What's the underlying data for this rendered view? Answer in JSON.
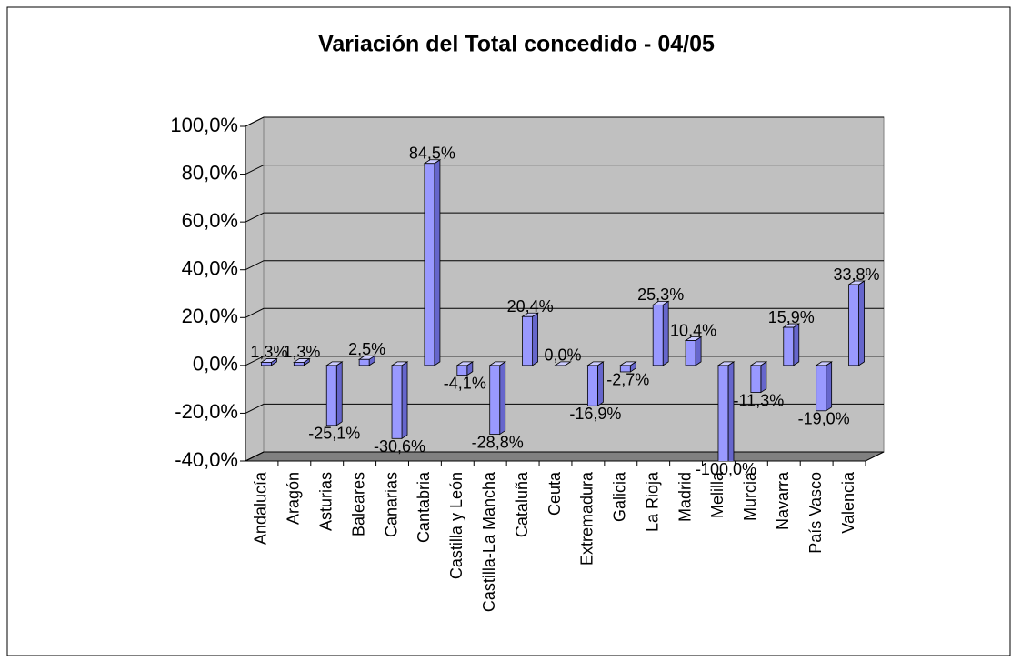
{
  "chart_data": {
    "type": "bar3d",
    "title": "Variación del Total concedido - 04/05",
    "categories": [
      "Andalucía",
      "Aragón",
      "Asturias",
      "Baleares",
      "Canarias",
      "Cantabria",
      "Castilla y León",
      "Castilla-La Mancha",
      "Cataluña",
      "Ceuta",
      "Extremadura",
      "Galicia",
      "La Rioja",
      "Madrid",
      "Melilla",
      "Murcia",
      "Navarra",
      "País Vasco",
      "Valencia"
    ],
    "values": [
      1.3,
      1.3,
      -25.1,
      2.5,
      -30.6,
      84.5,
      -4.1,
      -28.8,
      20.4,
      0.0,
      -16.9,
      -2.7,
      25.3,
      10.4,
      -100.0,
      -11.3,
      15.9,
      -19.0,
      33.8
    ],
    "value_labels": [
      "1,3%",
      "1,3%",
      "-25,1%",
      "2,5%",
      "-30,6%",
      "84,5%",
      "-4,1%",
      "-28,8%",
      "20,4%",
      "0,0%",
      "-16,9%",
      "-2,7%",
      "25,3%",
      "10,4%",
      "-100,0%",
      "-11,3%",
      "15,9%",
      "-19,0%",
      "33,8%"
    ],
    "color": "#9999ff",
    "ylim": [
      -40,
      100
    ],
    "yticks": [
      {
        "value": -40,
        "label": "-40,0%"
      },
      {
        "value": -20,
        "label": "-20,0%"
      },
      {
        "value": 0,
        "label": "0,0%"
      },
      {
        "value": 20,
        "label": "20,0%"
      },
      {
        "value": 40,
        "label": "40,0%"
      },
      {
        "value": 60,
        "label": "60,0%"
      },
      {
        "value": 80,
        "label": "80,0%"
      },
      {
        "value": 100,
        "label": "100,0%"
      }
    ],
    "grid": true
  }
}
